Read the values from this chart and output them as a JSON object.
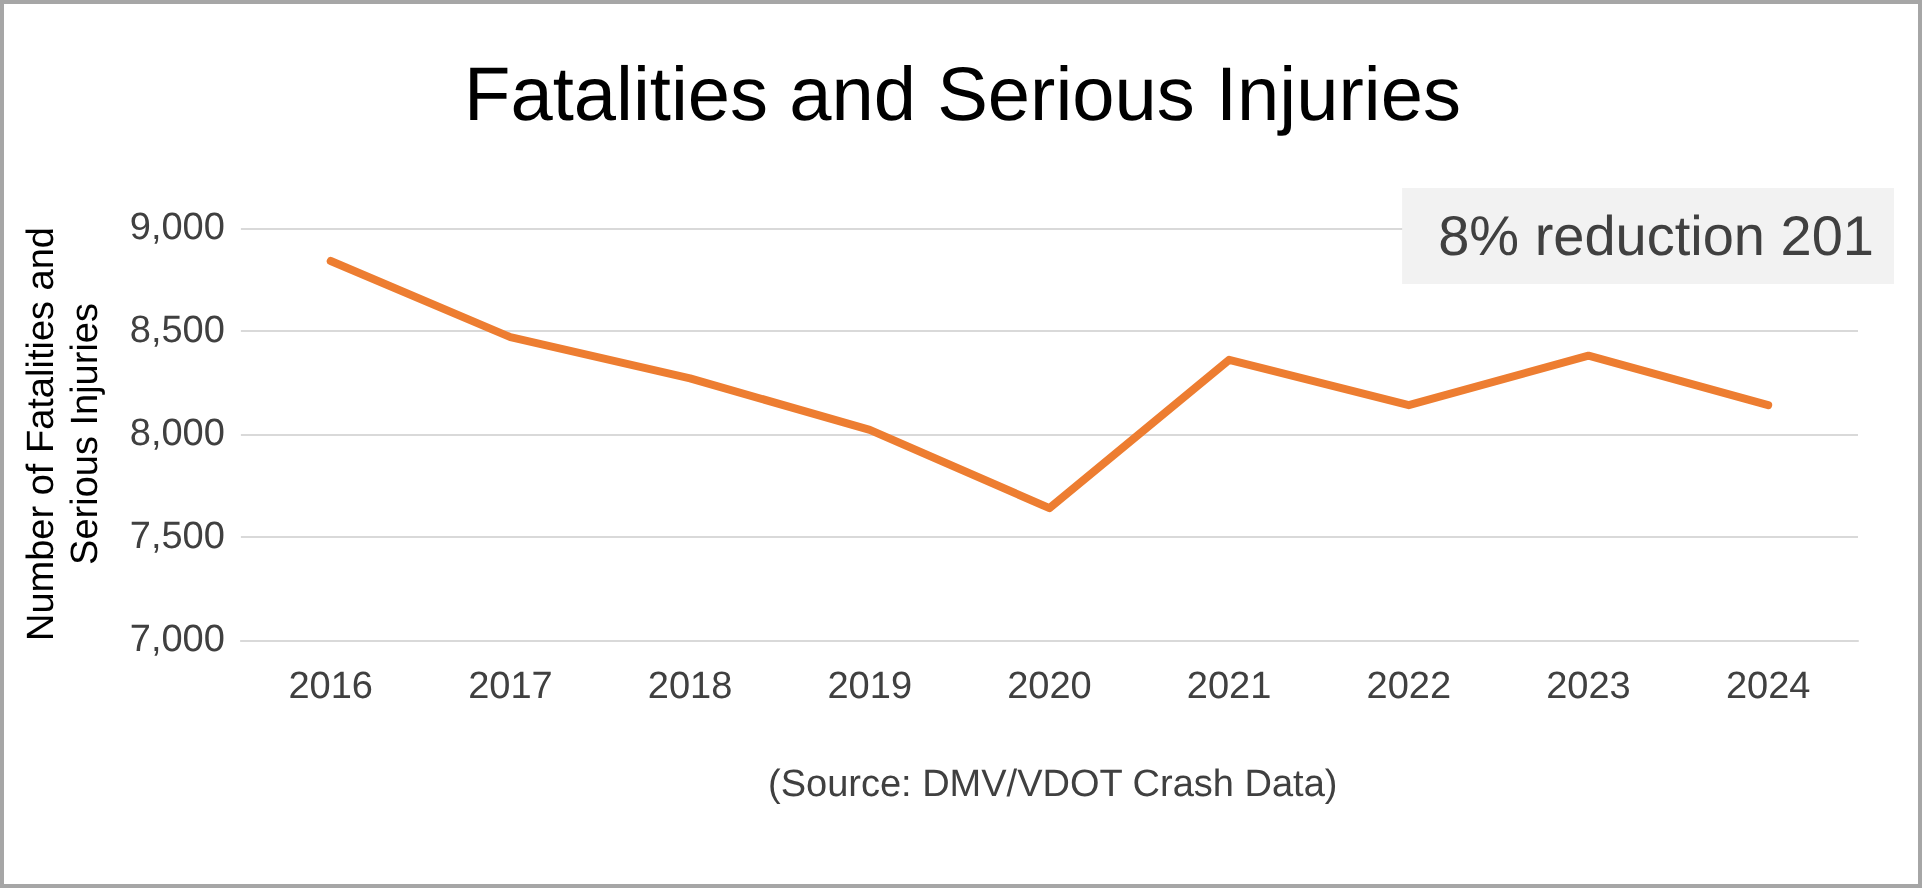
{
  "chart_data": {
    "type": "line",
    "title": "Fatalities and Serious Injuries",
    "ylabel": "Number of Fatalities and Serious Injuries",
    "categories": [
      "2016",
      "2017",
      "2018",
      "2019",
      "2020",
      "2021",
      "2022",
      "2023",
      "2024"
    ],
    "series": [
      {
        "color": "#ed7d31",
        "values": [
          8840,
          8470,
          8270,
          8020,
          7640,
          8360,
          8140,
          8380,
          8140
        ]
      }
    ],
    "ylim": [
      7000,
      9000
    ],
    "yticks": [
      {
        "value": 7000,
        "label": "7,000"
      },
      {
        "value": 7500,
        "label": "7,500"
      },
      {
        "value": 8000,
        "label": "8,000"
      },
      {
        "value": 8500,
        "label": "8,500"
      },
      {
        "value": 9000,
        "label": "9,000"
      }
    ],
    "grid": "y",
    "marker": "none",
    "line_style": "solid",
    "annotations": [
      "8% reduction 201",
      "(Source: DMV/VDOT Crash Data)"
    ]
  }
}
